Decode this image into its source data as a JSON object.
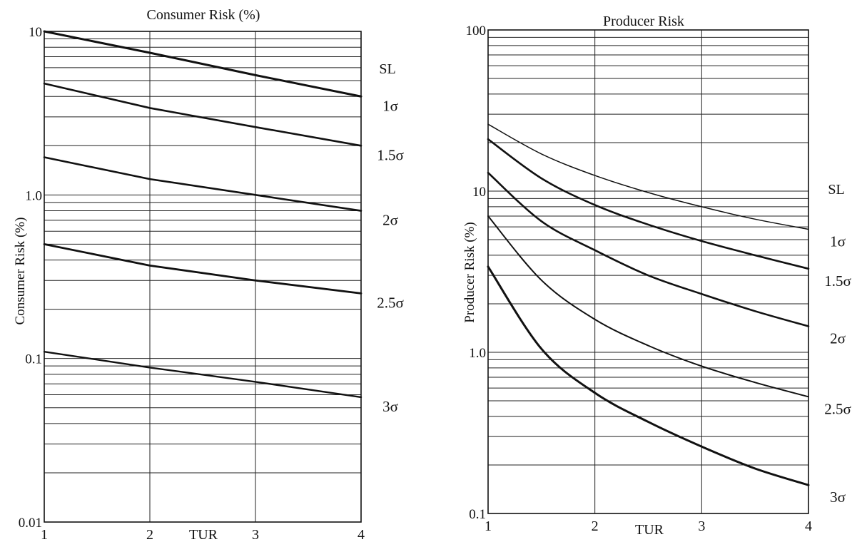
{
  "chart_data": [
    {
      "type": "line",
      "title": "Consumer Risk (%)",
      "xlabel": "TUR",
      "ylabel": "Consumer Risk (%)",
      "x_scale": "linear",
      "y_scale": "log",
      "xlim": [
        1,
        4
      ],
      "ylim": [
        0.01,
        10
      ],
      "x_ticks": [
        1,
        2,
        3,
        4
      ],
      "x_tick_labels": [
        "1",
        "2",
        "3",
        "4"
      ],
      "y_major_ticks": [
        0.01,
        0.1,
        1.0,
        10
      ],
      "y_tick_labels": [
        "0.01",
        "0.1",
        "1.0",
        "10"
      ],
      "grid": true,
      "legend_title": "SL",
      "legend_placement": "right, labels at curve ends",
      "x": [
        1,
        2,
        3,
        4
      ],
      "series": [
        {
          "name": "1σ",
          "values": [
            10.0,
            7.4,
            5.4,
            4.0
          ]
        },
        {
          "name": "1.5σ",
          "values": [
            4.8,
            3.4,
            2.6,
            2.0
          ]
        },
        {
          "name": "2σ",
          "values": [
            1.7,
            1.25,
            1.0,
            0.8
          ]
        },
        {
          "name": "2.5σ",
          "values": [
            0.5,
            0.37,
            0.3,
            0.25
          ]
        },
        {
          "name": "3σ",
          "values": [
            0.11,
            0.088,
            0.072,
            0.058
          ]
        }
      ]
    },
    {
      "type": "line",
      "title": "Producer Risk",
      "xlabel": "TUR",
      "ylabel": "Producer Risk (%)",
      "x_scale": "linear",
      "y_scale": "log",
      "xlim": [
        1,
        4
      ],
      "ylim": [
        0.1,
        100
      ],
      "x_ticks": [
        1,
        2,
        3,
        4
      ],
      "x_tick_labels": [
        "1",
        "2",
        "3",
        "4"
      ],
      "y_major_ticks": [
        0.1,
        1.0,
        10,
        100
      ],
      "y_tick_labels": [
        "0.1",
        "1.0",
        "10",
        "100"
      ],
      "grid": true,
      "legend_title": "SL",
      "legend_placement": "right, labels at curve ends",
      "x": [
        1,
        1.5,
        2,
        2.5,
        3,
        3.5,
        4
      ],
      "series": [
        {
          "name": "1σ",
          "values": [
            26,
            17,
            12.5,
            9.8,
            8.0,
            6.7,
            5.8
          ]
        },
        {
          "name": "1.5σ",
          "values": [
            21,
            12,
            8.2,
            6.2,
            4.9,
            4.0,
            3.3
          ]
        },
        {
          "name": "2σ",
          "values": [
            13,
            6.5,
            4.3,
            3.0,
            2.3,
            1.8,
            1.45
          ]
        },
        {
          "name": "2.5σ",
          "values": [
            7,
            2.8,
            1.6,
            1.1,
            0.82,
            0.65,
            0.53
          ]
        },
        {
          "name": "3σ",
          "values": [
            3.4,
            1.05,
            0.56,
            0.37,
            0.26,
            0.19,
            0.15
          ]
        }
      ]
    }
  ]
}
